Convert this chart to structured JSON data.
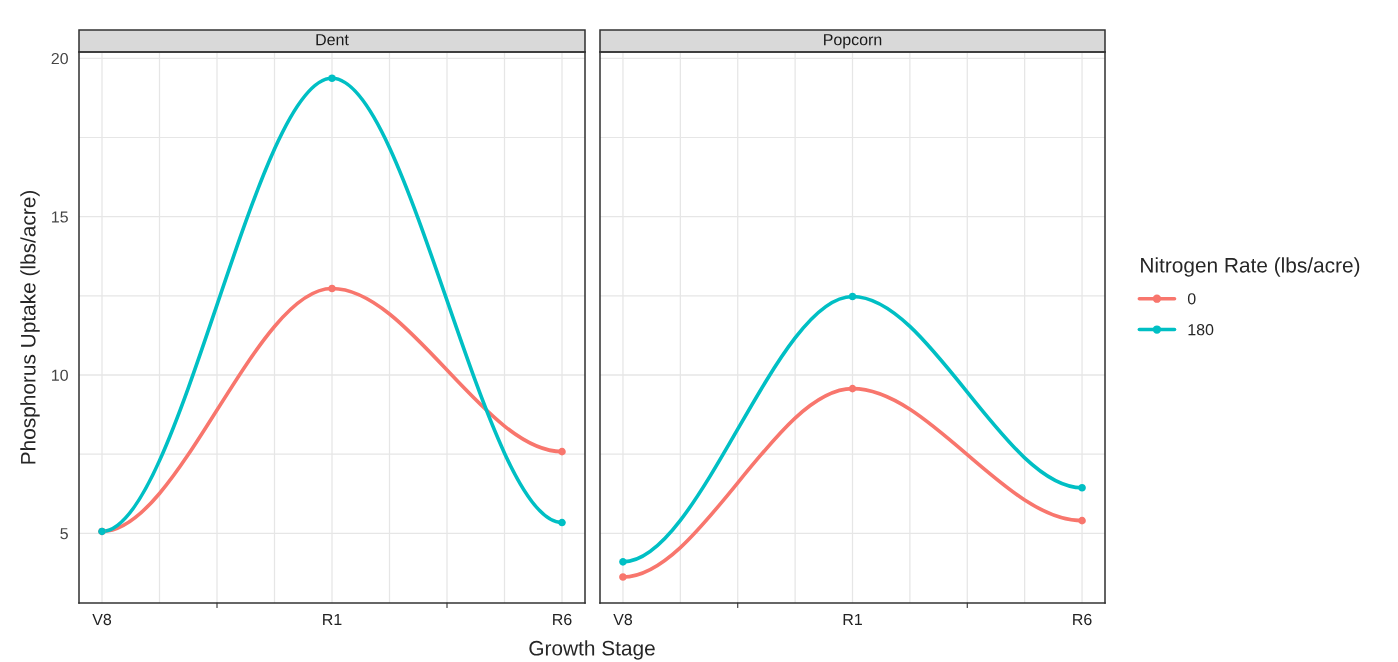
{
  "chart_data": [
    {
      "type": "line",
      "title": "Dent",
      "xlabel": "Growth Stage",
      "ylabel": "Phosphorus Uptake (lbs/acre)",
      "categories": [
        "V8",
        "R1",
        "R6"
      ],
      "series": [
        {
          "name": "0",
          "color": "#f8766d",
          "values": [
            5.06,
            12.73,
            7.58
          ]
        },
        {
          "name": "180",
          "color": "#00bfc4",
          "values": [
            5.06,
            19.37,
            5.34
          ]
        }
      ],
      "ylim": [
        2.8,
        20.2
      ],
      "yticks": [
        5,
        10,
        15,
        20
      ],
      "grid": true,
      "marker": "circle",
      "line_style": "solid",
      "legend": "right",
      "legend_title": "Nitrogen Rate (lbs/acre)"
    },
    {
      "type": "line",
      "title": "Popcorn",
      "categories": [
        "V8",
        "R1",
        "R6"
      ],
      "series": [
        {
          "name": "0",
          "color": "#f8766d",
          "values": [
            3.62,
            9.57,
            5.4
          ]
        },
        {
          "name": "180",
          "color": "#00bfc4",
          "values": [
            4.1,
            12.48,
            6.44
          ]
        }
      ],
      "ylim": [
        2.8,
        20.2
      ],
      "yticks": [
        5,
        10,
        15,
        20
      ],
      "tick_labels": "x",
      "grid": true,
      "marker": "circle",
      "line_style": "solid"
    }
  ]
}
